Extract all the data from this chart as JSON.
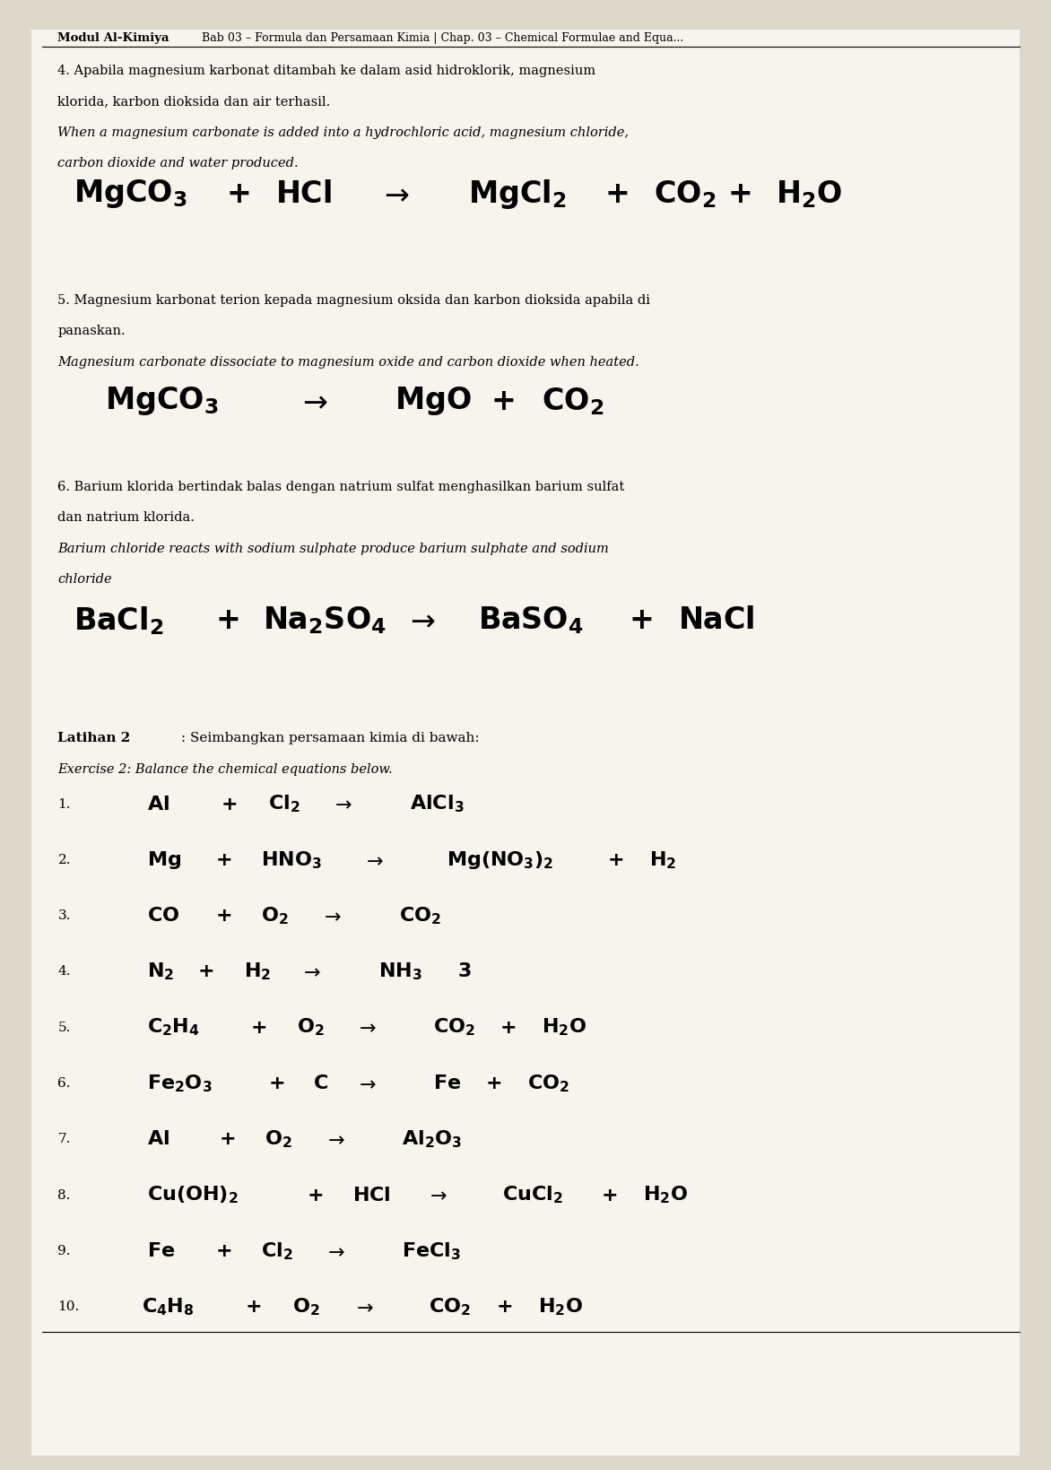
{
  "bg_color": "#ddd8cc",
  "page_bg": "#f7f4ee",
  "header_bold": "Modul Al-Kimiya",
  "header_rest": "  Bab 03 – Formula dan Persamaan Kimia | Chap. 03 – Chemical Formulae and Equa...",
  "sec4_line1": "4. Apabila magnesium karbonat ditambah ke dalam asid hidroklorik, magnesium",
  "sec4_line2": "klorida, karbon dioksida dan air terhasil.",
  "sec4_line3": "When a magnesium carbonate is added into a hydrochloric acid, magnesium chloride,",
  "sec4_line4": "carbon dioxide and water produced.",
  "sec5_line1": "5. Magnesium karbonat terion kepada magnesium oksida dan karbon dioksida apabila di",
  "sec5_line2": "panaskan.",
  "sec5_line3": "Magnesium carbonate dissociate to magnesium oxide and carbon dioxide when heated.",
  "sec6_line1": "6. Barium klorida bertindak balas dengan natrium sulfat menghasilkan barium sulfat",
  "sec6_line2": "dan natrium klorida.",
  "sec6_line3": "Barium chloride reacts with sodium sulphate produce barium sulphate and sodium",
  "sec6_line4": "chloride",
  "lat_bold": "Latihan 2",
  "lat_normal": " : Seimbangkan persamaan kimia di bawah:",
  "lat_italic": "Exercise 2: Balance the chemical equations below."
}
